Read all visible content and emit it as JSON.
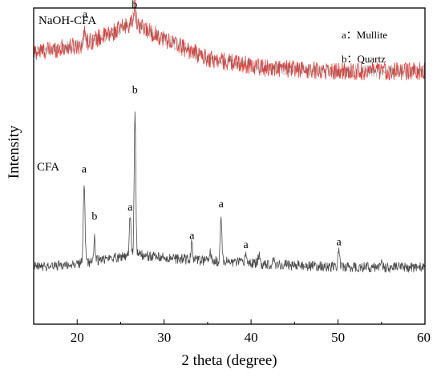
{
  "chart_data": {
    "type": "line",
    "title": "",
    "xlabel": "2 theta (degree)",
    "ylabel": "Intensity",
    "xlim": [
      15,
      60
    ],
    "x_ticks": [
      "20",
      "30",
      "40",
      "50",
      "60"
    ],
    "y_ticks": [],
    "grid": false,
    "legend": {
      "placement": "top-right",
      "entries": [
        {
          "key": "a",
          "label": "Mullite"
        },
        {
          "key": "b",
          "label": "Quartz"
        }
      ]
    },
    "series": [
      {
        "name": "NaOH-CFA",
        "color": "#e8413c",
        "overlay_color": "#6b6b6b",
        "baseline_points": [
          [
            15,
            0.86
          ],
          [
            20,
            0.88
          ],
          [
            24,
            0.92
          ],
          [
            26,
            0.95
          ],
          [
            28,
            0.93
          ],
          [
            31,
            0.89
          ],
          [
            35,
            0.84
          ],
          [
            42,
            0.81
          ],
          [
            50,
            0.8
          ],
          [
            60,
            0.8
          ]
        ],
        "noise": 0.028,
        "peaks": [
          {
            "x": 20.9,
            "height": 0.04,
            "width": 0.12
          },
          {
            "x": 26.6,
            "height": 0.06,
            "width": 0.15
          }
        ],
        "peak_labels": [
          {
            "x": 20.9,
            "y": 0.97,
            "text": "a"
          },
          {
            "x": 26.6,
            "y": 1.0,
            "text": "b"
          }
        ]
      },
      {
        "name": "CFA",
        "color": "#4a4a4a",
        "baseline_points": [
          [
            15,
            0.18
          ],
          [
            20,
            0.19
          ],
          [
            24,
            0.21
          ],
          [
            27,
            0.22
          ],
          [
            30,
            0.21
          ],
          [
            35,
            0.2
          ],
          [
            42,
            0.19
          ],
          [
            50,
            0.18
          ],
          [
            60,
            0.18
          ]
        ],
        "noise": 0.016,
        "peaks": [
          {
            "x": 20.8,
            "height": 0.25,
            "width": 0.1
          },
          {
            "x": 22.0,
            "height": 0.08,
            "width": 0.08
          },
          {
            "x": 26.1,
            "height": 0.12,
            "width": 0.1
          },
          {
            "x": 26.65,
            "height": 0.46,
            "width": 0.09
          },
          {
            "x": 33.2,
            "height": 0.06,
            "width": 0.09
          },
          {
            "x": 35.3,
            "height": 0.03,
            "width": 0.09
          },
          {
            "x": 36.55,
            "height": 0.15,
            "width": 0.09
          },
          {
            "x": 39.4,
            "height": 0.03,
            "width": 0.09
          },
          {
            "x": 40.9,
            "height": 0.025,
            "width": 0.09
          },
          {
            "x": 42.6,
            "height": 0.02,
            "width": 0.09
          },
          {
            "x": 50.1,
            "height": 0.06,
            "width": 0.1
          },
          {
            "x": 54.9,
            "height": 0.02,
            "width": 0.09
          }
        ],
        "peak_labels": [
          {
            "x": 20.8,
            "y": 0.48,
            "text": "a"
          },
          {
            "x": 22.0,
            "y": 0.33,
            "text": "b"
          },
          {
            "x": 26.1,
            "y": 0.36,
            "text": "a"
          },
          {
            "x": 26.65,
            "y": 0.73,
            "text": "b"
          },
          {
            "x": 33.2,
            "y": 0.27,
            "text": "a"
          },
          {
            "x": 36.55,
            "y": 0.37,
            "text": "a"
          },
          {
            "x": 39.4,
            "y": 0.24,
            "text": "a"
          },
          {
            "x": 50.1,
            "y": 0.25,
            "text": "a"
          }
        ]
      }
    ]
  }
}
